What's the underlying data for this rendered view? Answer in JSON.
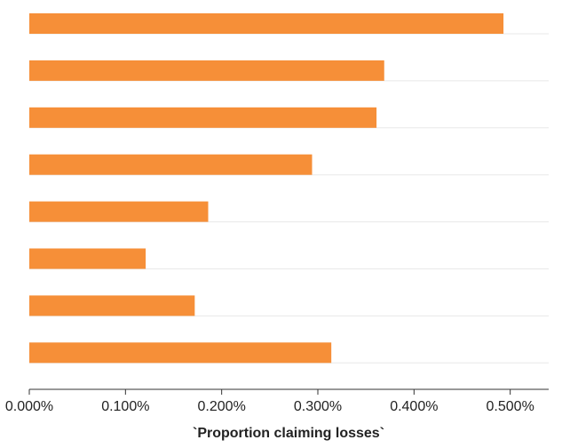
{
  "chart_data": {
    "type": "bar",
    "orientation": "horizontal",
    "values": [
      0.00493,
      0.00369,
      0.00361,
      0.00294,
      0.00186,
      0.00121,
      0.00172,
      0.00314
    ],
    "xlim": [
      0,
      0.0054
    ],
    "xticks": [
      0,
      0.001,
      0.002,
      0.003,
      0.004,
      0.005
    ],
    "xtick_labels": [
      "0.000%",
      "0.100%",
      "0.200%",
      "0.300%",
      "0.400%",
      "0.500%"
    ],
    "xlabel": "`Proportion claiming losses`",
    "ylabel": "",
    "title": "",
    "bar_color": "#f68f38",
    "gridline_color": "#e8e8e8",
    "axis_color": "#333333",
    "grid": "horizontal baselines only",
    "legend": "none"
  }
}
